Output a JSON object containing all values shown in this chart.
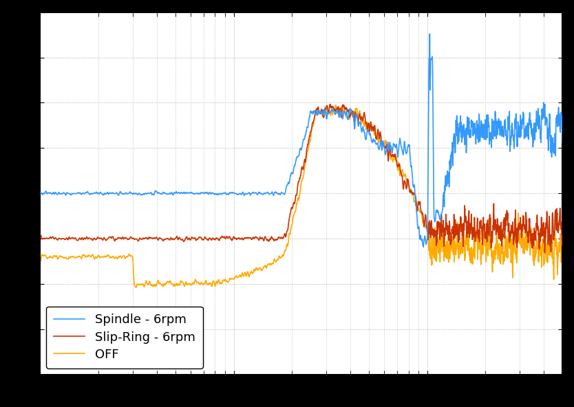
{
  "legend_labels": [
    "Spindle - 6rpm",
    "Slip-Ring - 6rpm",
    "OFF"
  ],
  "colors": [
    "#3399ff",
    "#cc3300",
    "#ffaa00"
  ],
  "background_color": "#ffffff",
  "grid_color": "#aaaaaa",
  "figsize": [
    8.34,
    5.92
  ],
  "dpi": 100,
  "xlim": [
    1,
    500
  ],
  "ylim": [
    -10,
    10
  ],
  "N": 5000,
  "legend_fontsize": 13,
  "tick_labelsize": 12
}
